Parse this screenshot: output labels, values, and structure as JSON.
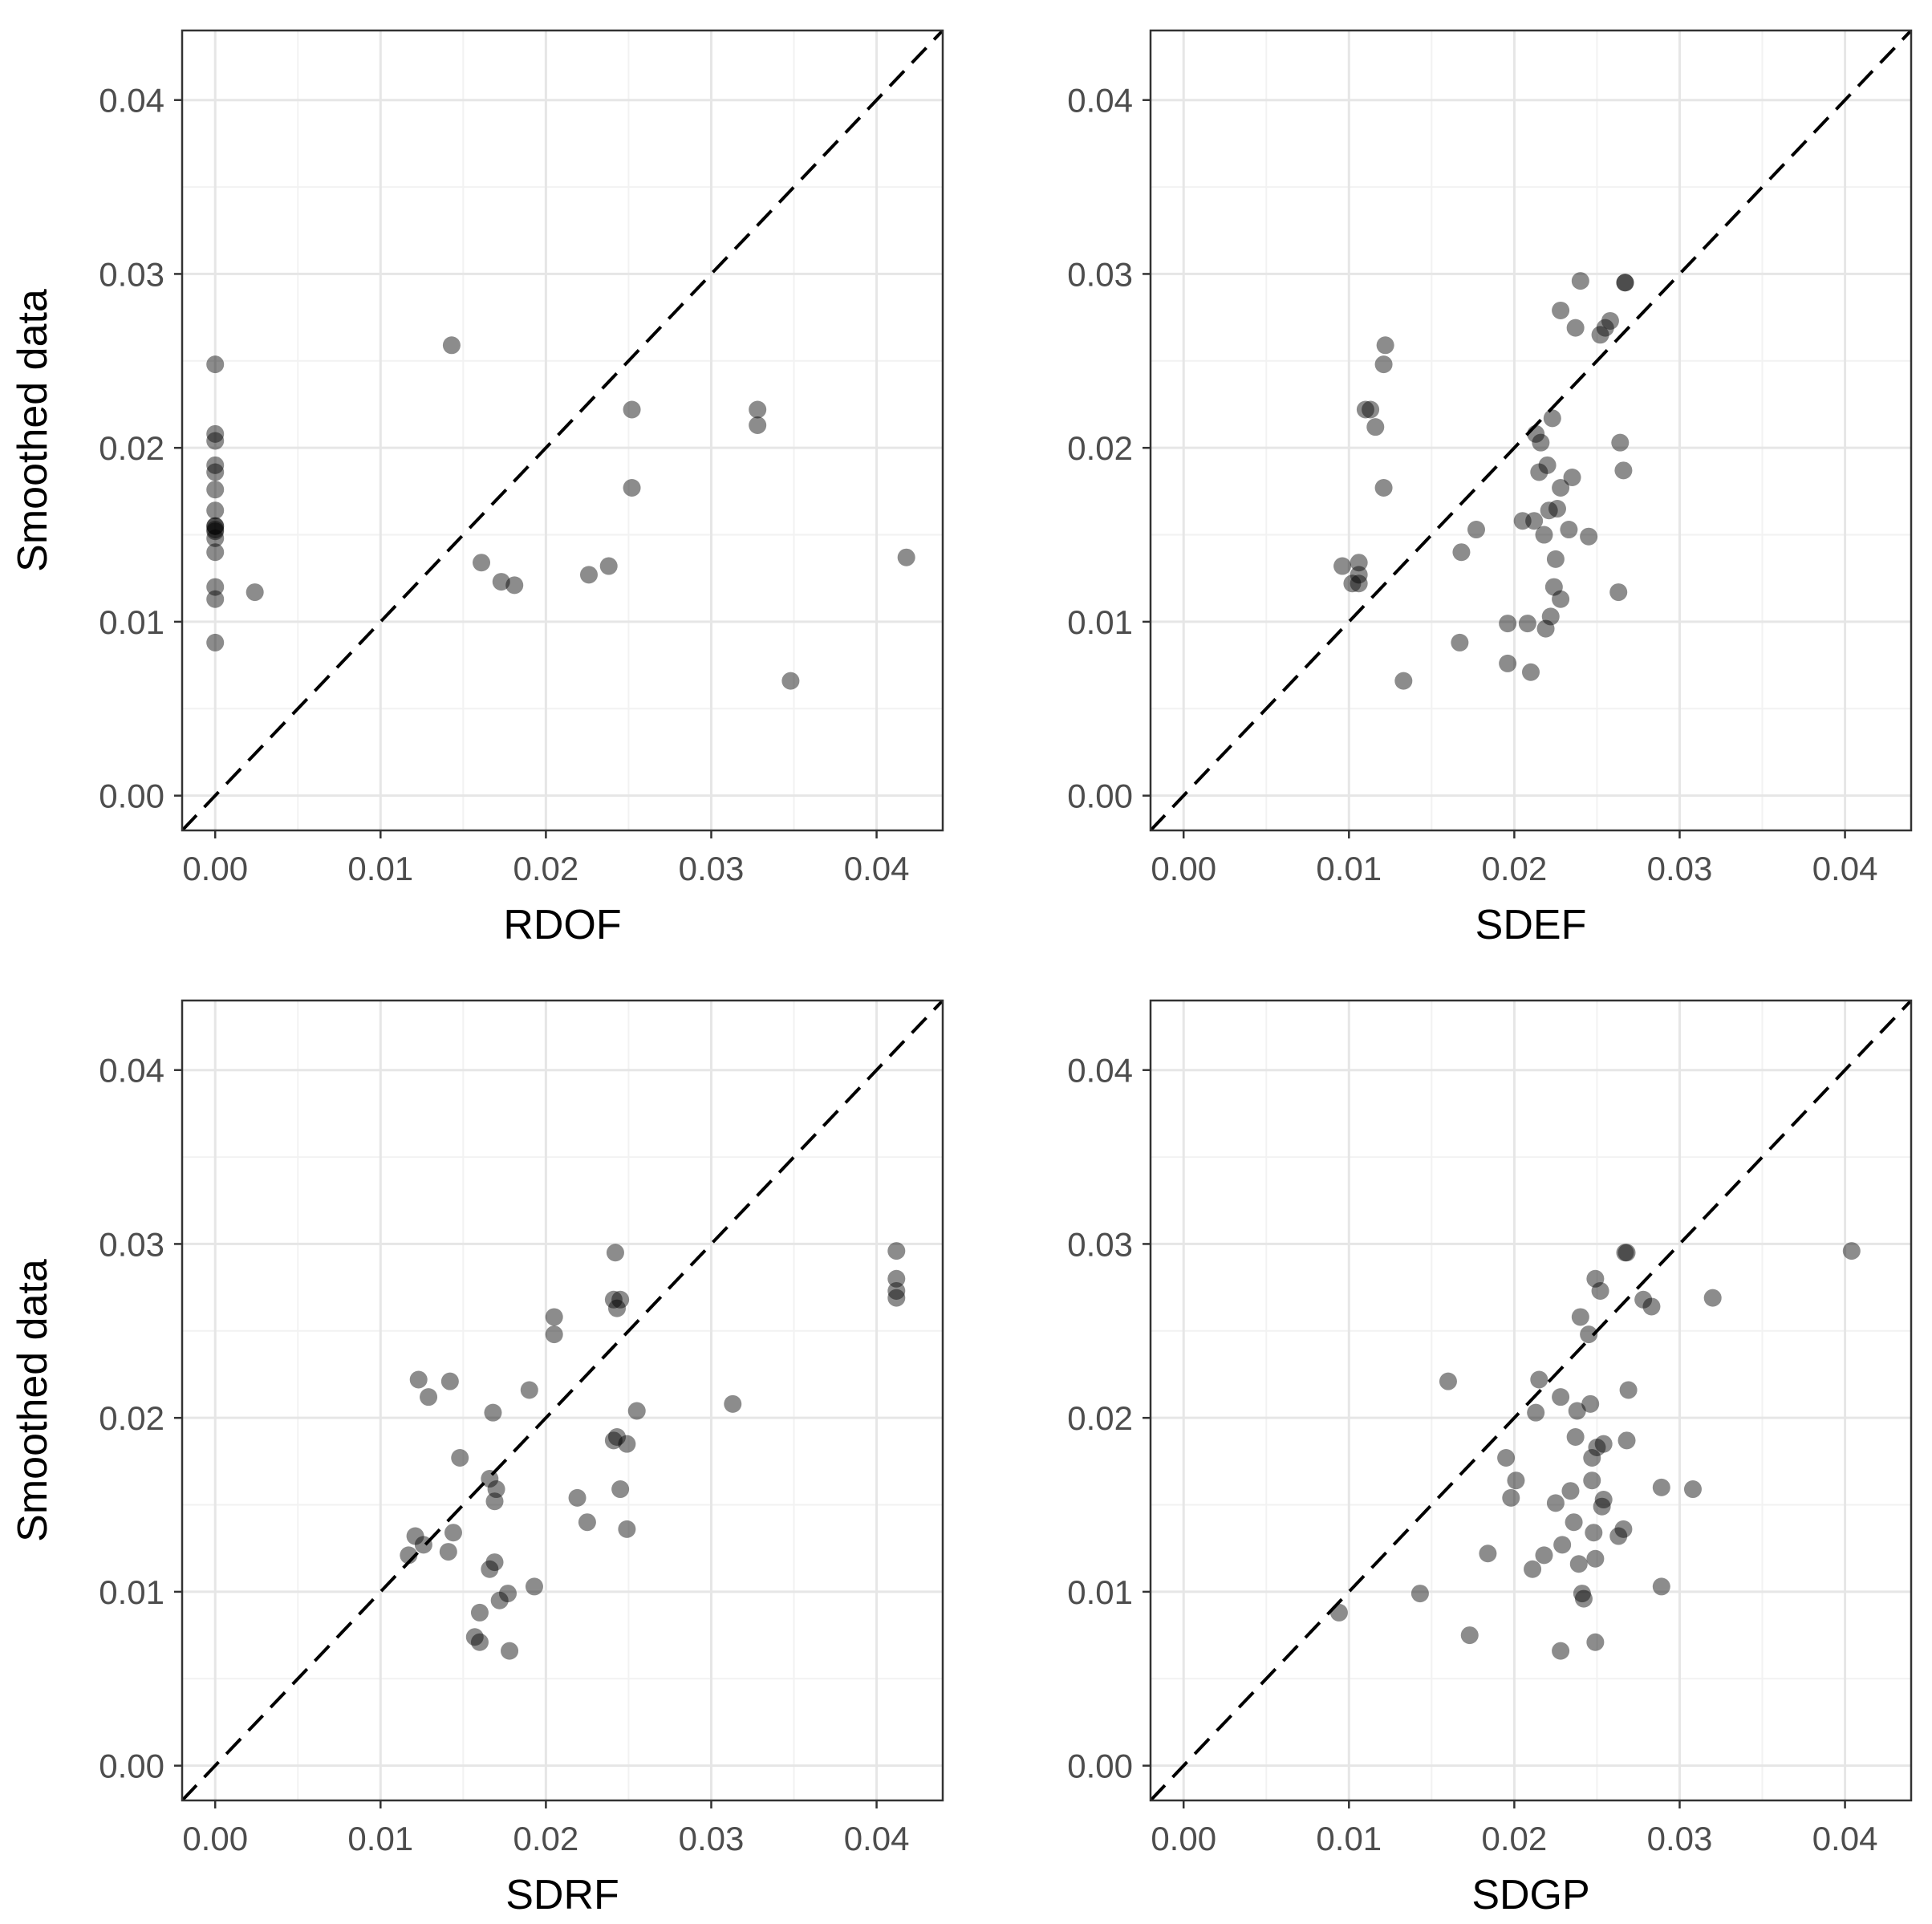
{
  "chart_data": [
    {
      "type": "scatter",
      "panel": "top-left",
      "xlabel": "RDOF",
      "ylabel": "Smoothed data",
      "xlim": [
        -0.002,
        0.044
      ],
      "ylim": [
        -0.002,
        0.044
      ],
      "x_ticks": [
        "0.00",
        "0.01",
        "0.02",
        "0.03",
        "0.04"
      ],
      "y_ticks": [
        "0.00",
        "0.01",
        "0.02",
        "0.03",
        "0.04"
      ],
      "reference_line": "y = x (dashed)",
      "x": [
        0.0,
        0.0,
        0.0,
        0.0,
        0.0,
        0.0,
        0.0,
        0.0,
        0.0,
        0.0,
        0.0,
        0.0,
        0.0,
        0.0,
        0.0,
        0.0,
        0.0024,
        0.0143,
        0.0161,
        0.0173,
        0.0181,
        0.0226,
        0.0238,
        0.0252,
        0.0252,
        0.0328,
        0.0328,
        0.0348,
        0.0418
      ],
      "y": [
        0.0248,
        0.0208,
        0.0204,
        0.019,
        0.0186,
        0.0176,
        0.0164,
        0.0155,
        0.0152,
        0.0148,
        0.014,
        0.012,
        0.0113,
        0.0088,
        0.0153,
        0.0155,
        0.0117,
        0.0259,
        0.0134,
        0.0123,
        0.0121,
        0.0127,
        0.0132,
        0.0222,
        0.0177,
        0.0222,
        0.0213,
        0.0066,
        0.0137
      ]
    },
    {
      "type": "scatter",
      "panel": "top-right",
      "xlabel": "SDEF",
      "ylabel": "",
      "xlim": [
        -0.002,
        0.044
      ],
      "ylim": [
        -0.002,
        0.044
      ],
      "x_ticks": [
        "0.00",
        "0.01",
        "0.02",
        "0.03",
        "0.04"
      ],
      "y_ticks": [
        "0.00",
        "0.01",
        "0.02",
        "0.03",
        "0.04"
      ],
      "reference_line": "y = x (dashed)",
      "x": [
        0.0096,
        0.0102,
        0.0106,
        0.0106,
        0.011,
        0.0106,
        0.0113,
        0.0116,
        0.0121,
        0.0122,
        0.0121,
        0.0133,
        0.0167,
        0.0168,
        0.0177,
        0.0196,
        0.0196,
        0.0205,
        0.0208,
        0.021,
        0.0212,
        0.0213,
        0.0215,
        0.0216,
        0.0218,
        0.0219,
        0.022,
        0.0221,
        0.0222,
        0.0223,
        0.0224,
        0.0225,
        0.0226,
        0.0228,
        0.0228,
        0.0233,
        0.0235,
        0.024,
        0.0245,
        0.0228,
        0.0237,
        0.0252,
        0.0255,
        0.0258,
        0.0263,
        0.0264,
        0.0266,
        0.0267,
        0.0267
      ],
      "y": [
        0.0132,
        0.0122,
        0.0134,
        0.0127,
        0.0222,
        0.0122,
        0.0222,
        0.0212,
        0.0248,
        0.0259,
        0.0177,
        0.0066,
        0.0088,
        0.014,
        0.0153,
        0.0076,
        0.0099,
        0.0158,
        0.0099,
        0.0071,
        0.0158,
        0.0208,
        0.0186,
        0.0203,
        0.015,
        0.0096,
        0.019,
        0.0164,
        0.0103,
        0.0217,
        0.012,
        0.0136,
        0.0165,
        0.0113,
        0.0177,
        0.0153,
        0.0183,
        0.0296,
        0.0149,
        0.0279,
        0.0269,
        0.0265,
        0.0269,
        0.0273,
        0.0117,
        0.0203,
        0.0187,
        0.0295,
        0.0295
      ]
    },
    {
      "type": "scatter",
      "panel": "bottom-left",
      "xlabel": "SDRF",
      "ylabel": "Smoothed data",
      "xlim": [
        -0.002,
        0.044
      ],
      "ylim": [
        -0.002,
        0.044
      ],
      "x_ticks": [
        "0.00",
        "0.01",
        "0.02",
        "0.03",
        "0.04"
      ],
      "y_ticks": [
        "0.00",
        "0.01",
        "0.02",
        "0.03",
        "0.04"
      ],
      "reference_line": "y = x (dashed)",
      "x": [
        0.0117,
        0.0121,
        0.0126,
        0.0123,
        0.0129,
        0.0141,
        0.0142,
        0.0144,
        0.0148,
        0.0157,
        0.016,
        0.016,
        0.0166,
        0.0166,
        0.0168,
        0.0169,
        0.0169,
        0.017,
        0.0172,
        0.0177,
        0.0178,
        0.019,
        0.0193,
        0.0205,
        0.0205,
        0.0219,
        0.0225,
        0.0241,
        0.0241,
        0.0242,
        0.0243,
        0.0243,
        0.0245,
        0.0245,
        0.0249,
        0.0249,
        0.0255,
        0.0313,
        0.0412,
        0.0412,
        0.0412,
        0.0412
      ],
      "y": [
        0.0121,
        0.0132,
        0.0127,
        0.0222,
        0.0212,
        0.0123,
        0.0221,
        0.0134,
        0.0177,
        0.0074,
        0.0071,
        0.0088,
        0.0165,
        0.0113,
        0.0203,
        0.0117,
        0.0152,
        0.0159,
        0.0095,
        0.0099,
        0.0066,
        0.0216,
        0.0103,
        0.0258,
        0.0248,
        0.0154,
        0.014,
        0.0187,
        0.0268,
        0.0295,
        0.0263,
        0.0189,
        0.0159,
        0.0268,
        0.0185,
        0.0136,
        0.0204,
        0.0208,
        0.0296,
        0.028,
        0.0273,
        0.0269
      ]
    },
    {
      "type": "scatter",
      "panel": "bottom-right",
      "xlabel": "SDGP",
      "ylabel": "",
      "xlim": [
        -0.002,
        0.044
      ],
      "ylim": [
        -0.002,
        0.044
      ],
      "x_ticks": [
        "0.00",
        "0.01",
        "0.02",
        "0.03",
        "0.04"
      ],
      "y_ticks": [
        "0.00",
        "0.01",
        "0.02",
        "0.03",
        "0.04"
      ],
      "reference_line": "y = x (dashed)",
      "x": [
        0.0094,
        0.0143,
        0.016,
        0.0173,
        0.0184,
        0.0195,
        0.0198,
        0.0201,
        0.0211,
        0.0213,
        0.0215,
        0.0218,
        0.0225,
        0.0228,
        0.0228,
        0.0229,
        0.0234,
        0.0236,
        0.0237,
        0.0238,
        0.0239,
        0.024,
        0.0241,
        0.0242,
        0.0245,
        0.0246,
        0.0247,
        0.0247,
        0.0248,
        0.0249,
        0.0249,
        0.0249,
        0.025,
        0.0252,
        0.0253,
        0.0254,
        0.0254,
        0.0263,
        0.0266,
        0.0267,
        0.0268,
        0.0268,
        0.0269,
        0.0278,
        0.0283,
        0.0289,
        0.0289,
        0.0308,
        0.032,
        0.0404
      ],
      "y": [
        0.0088,
        0.0099,
        0.0221,
        0.0075,
        0.0122,
        0.0177,
        0.0154,
        0.0164,
        0.0113,
        0.0203,
        0.0222,
        0.0121,
        0.0151,
        0.0066,
        0.0212,
        0.0127,
        0.0158,
        0.014,
        0.0189,
        0.0204,
        0.0116,
        0.0258,
        0.0099,
        0.0096,
        0.0248,
        0.0208,
        0.0164,
        0.0177,
        0.0134,
        0.0119,
        0.0071,
        0.028,
        0.0183,
        0.0273,
        0.0149,
        0.0185,
        0.0153,
        0.0132,
        0.0136,
        0.0295,
        0.0295,
        0.0187,
        0.0216,
        0.0268,
        0.0264,
        0.016,
        0.0103,
        0.0159,
        0.0269,
        0.0296
      ]
    }
  ]
}
